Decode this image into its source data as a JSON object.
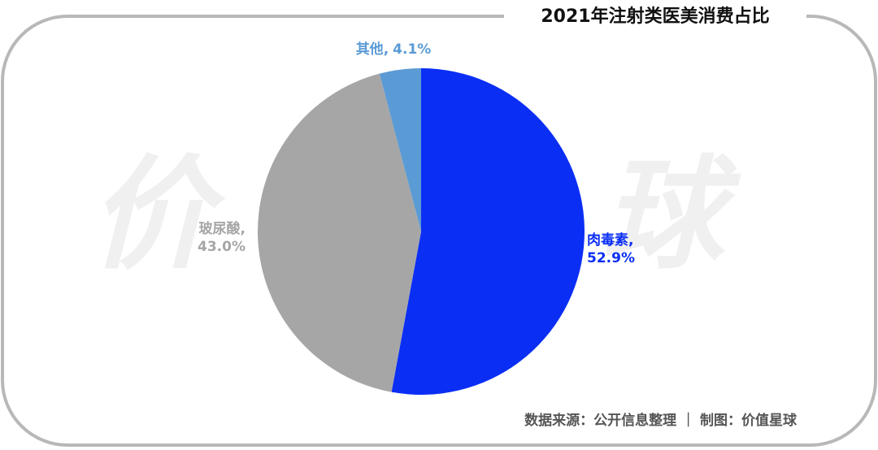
{
  "chart_data": {
    "type": "pie",
    "title": "2021年注射类医美消费占比",
    "categories": [
      "肉毒素",
      "玻尿酸",
      "其他"
    ],
    "values": [
      52.9,
      43.0,
      4.1
    ],
    "value_labels": [
      "52.9%",
      "43.0%",
      "4.1%"
    ],
    "label_separator": ",",
    "colors": [
      "#0b2ef5",
      "#a6a6a6",
      "#5b9bd5"
    ],
    "watermark": "价值星球",
    "source": "数据来源：公开信息整理 ｜ 制图：价值星球"
  }
}
